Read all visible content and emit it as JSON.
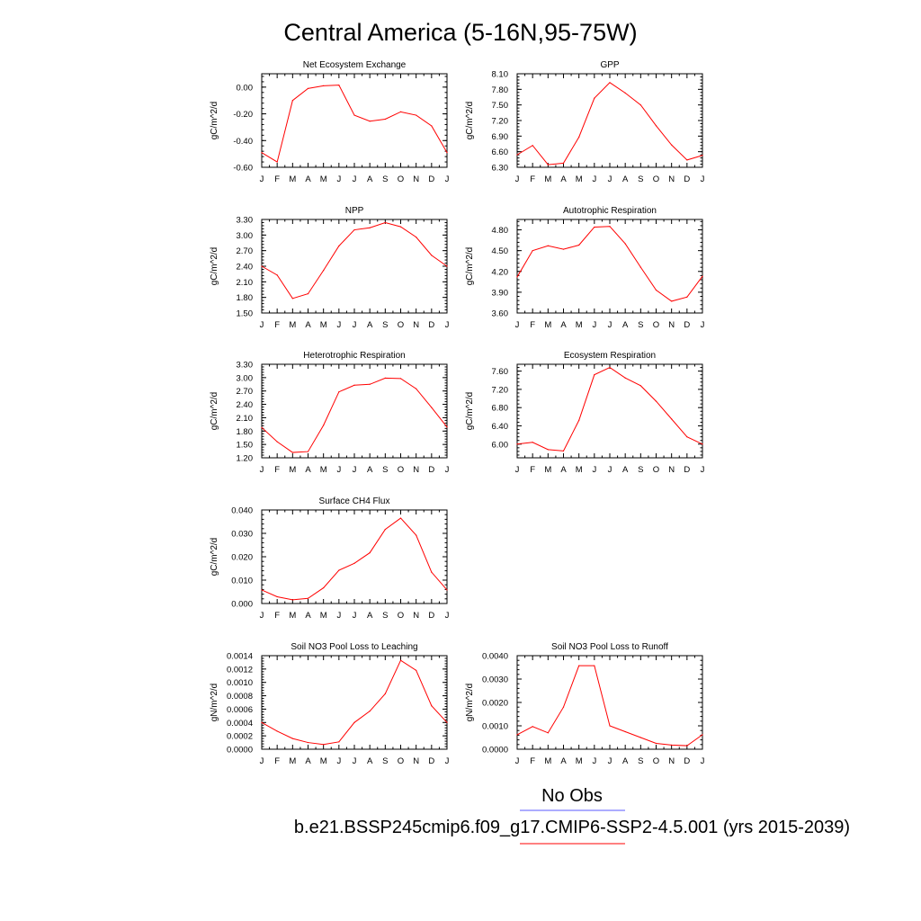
{
  "figure": {
    "title": "Central America (5-16N,95-75W)",
    "legend": [
      {
        "label": "No Obs",
        "color": "#5a5aff"
      },
      {
        "label": "b.e21.BSSP245cmip6.f09_g17.CMIP6-SSP2-4.5.001 (yrs 2015-2039)",
        "color": "#ff0000"
      }
    ]
  },
  "chart_data": [
    {
      "type": "line",
      "title": "Net Ecosystem Exchange",
      "ylabel": "gC/m^2/d",
      "categories": [
        "J",
        "F",
        "M",
        "A",
        "M",
        "J",
        "J",
        "A",
        "S",
        "O",
        "N",
        "D",
        "J"
      ],
      "ylim": [
        -0.6,
        0.1
      ],
      "yticks": [
        -0.6,
        -0.4,
        -0.2,
        0.0
      ],
      "ytick_labels": [
        "-0.60",
        "-0.40",
        "-0.20",
        "0.00"
      ],
      "series": [
        {
          "color": "#ff0000",
          "values": [
            -0.49,
            -0.56,
            -0.1,
            -0.01,
            0.01,
            0.015,
            -0.21,
            -0.255,
            -0.24,
            -0.185,
            -0.21,
            -0.29,
            -0.49
          ]
        }
      ]
    },
    {
      "type": "line",
      "title": "GPP",
      "ylabel": "gC/m^2/d",
      "categories": [
        "J",
        "F",
        "M",
        "A",
        "M",
        "J",
        "J",
        "A",
        "S",
        "O",
        "N",
        "D",
        "J"
      ],
      "ylim": [
        6.3,
        8.1
      ],
      "yticks": [
        6.3,
        6.6,
        6.9,
        7.2,
        7.5,
        7.8,
        8.1
      ],
      "ytick_labels": [
        "6.30",
        "6.60",
        "6.90",
        "7.20",
        "7.50",
        "7.80",
        "8.10"
      ],
      "series": [
        {
          "color": "#ff0000",
          "values": [
            6.54,
            6.72,
            6.35,
            6.38,
            6.88,
            7.63,
            7.93,
            7.73,
            7.5,
            7.1,
            6.73,
            6.44,
            6.53
          ]
        }
      ]
    },
    {
      "type": "line",
      "title": "NPP",
      "ylabel": "gC/m^2/d",
      "categories": [
        "J",
        "F",
        "M",
        "A",
        "M",
        "J",
        "J",
        "A",
        "S",
        "O",
        "N",
        "D",
        "J"
      ],
      "ylim": [
        1.5,
        3.3
      ],
      "yticks": [
        1.5,
        1.8,
        2.1,
        2.4,
        2.7,
        3.0,
        3.3
      ],
      "ytick_labels": [
        "1.50",
        "1.80",
        "2.10",
        "2.40",
        "2.70",
        "3.00",
        "3.30"
      ],
      "series": [
        {
          "color": "#ff0000",
          "values": [
            2.4,
            2.23,
            1.78,
            1.87,
            2.32,
            2.79,
            3.1,
            3.14,
            3.24,
            3.16,
            2.96,
            2.61,
            2.4
          ]
        }
      ]
    },
    {
      "type": "line",
      "title": "Autotrophic Respiration",
      "ylabel": "gC/m^2/d",
      "categories": [
        "J",
        "F",
        "M",
        "A",
        "M",
        "J",
        "J",
        "A",
        "S",
        "O",
        "N",
        "D",
        "J"
      ],
      "ylim": [
        3.6,
        4.95
      ],
      "yticks": [
        3.6,
        3.9,
        4.2,
        4.5,
        4.8
      ],
      "ytick_labels": [
        "3.60",
        "3.90",
        "4.20",
        "4.50",
        "4.80"
      ],
      "series": [
        {
          "color": "#ff0000",
          "values": [
            4.12,
            4.5,
            4.57,
            4.52,
            4.58,
            4.84,
            4.85,
            4.6,
            4.26,
            3.93,
            3.77,
            3.83,
            4.13
          ]
        }
      ]
    },
    {
      "type": "line",
      "title": "Heterotrophic Respiration",
      "ylabel": "gC/m^2/d",
      "categories": [
        "J",
        "F",
        "M",
        "A",
        "M",
        "J",
        "J",
        "A",
        "S",
        "O",
        "N",
        "D",
        "J"
      ],
      "ylim": [
        1.2,
        3.3
      ],
      "yticks": [
        1.2,
        1.5,
        1.8,
        2.1,
        2.4,
        2.7,
        3.0,
        3.3
      ],
      "ytick_labels": [
        "1.20",
        "1.50",
        "1.80",
        "2.10",
        "2.40",
        "2.70",
        "3.00",
        "3.30"
      ],
      "series": [
        {
          "color": "#ff0000",
          "values": [
            1.88,
            1.56,
            1.32,
            1.34,
            1.93,
            2.68,
            2.83,
            2.85,
            2.99,
            2.98,
            2.75,
            2.33,
            1.89
          ]
        }
      ]
    },
    {
      "type": "line",
      "title": "Ecosystem Respiration",
      "ylabel": "gC/m^2/d",
      "categories": [
        "J",
        "F",
        "M",
        "A",
        "M",
        "J",
        "J",
        "A",
        "S",
        "O",
        "N",
        "D",
        "J"
      ],
      "ylim": [
        5.7,
        7.75
      ],
      "yticks": [
        6.0,
        6.4,
        6.8,
        7.2,
        7.6
      ],
      "ytick_labels": [
        "6.00",
        "6.40",
        "6.80",
        "7.20",
        "7.60"
      ],
      "series": [
        {
          "color": "#ff0000",
          "values": [
            6.0,
            6.04,
            5.88,
            5.85,
            6.52,
            7.52,
            7.68,
            7.45,
            7.28,
            6.94,
            6.55,
            6.16,
            6.0
          ]
        }
      ]
    },
    {
      "type": "line",
      "title": "Surface CH4 Flux",
      "ylabel": "gC/m^2/d",
      "categories": [
        "J",
        "F",
        "M",
        "A",
        "M",
        "J",
        "J",
        "A",
        "S",
        "O",
        "N",
        "D",
        "J"
      ],
      "ylim": [
        0.0,
        0.04
      ],
      "yticks": [
        0.0,
        0.01,
        0.02,
        0.03,
        0.04
      ],
      "ytick_labels": [
        "0.000",
        "0.010",
        "0.020",
        "0.030",
        "0.040"
      ],
      "series": [
        {
          "color": "#ff0000",
          "values": [
            0.0058,
            0.0029,
            0.0016,
            0.0022,
            0.0067,
            0.0142,
            0.0172,
            0.0217,
            0.0317,
            0.0365,
            0.0292,
            0.0134,
            0.0058
          ]
        }
      ]
    },
    {
      "type": "line",
      "title": "Soil NO3 Pool Loss to Leaching",
      "ylabel": "gN/m^2/d",
      "categories": [
        "J",
        "F",
        "M",
        "A",
        "M",
        "J",
        "J",
        "A",
        "S",
        "O",
        "N",
        "D",
        "J"
      ],
      "ylim": [
        0.0,
        0.0014
      ],
      "yticks": [
        0.0,
        0.0002,
        0.0004,
        0.0006,
        0.0008,
        0.001,
        0.0012,
        0.0014
      ],
      "ytick_labels": [
        "0.0000",
        "0.0002",
        "0.0004",
        "0.0006",
        "0.0008",
        "0.0010",
        "0.0012",
        "0.0014"
      ],
      "series": [
        {
          "color": "#ff0000",
          "values": [
            0.0004,
            0.00027,
            0.00016,
            0.0001,
            7e-05,
            0.00011,
            0.0004,
            0.00057,
            0.00083,
            0.00133,
            0.00118,
            0.00065,
            0.0004
          ]
        }
      ]
    },
    {
      "type": "line",
      "title": "Soil NO3 Pool Loss to Runoff",
      "ylabel": "gN/m^2/d",
      "categories": [
        "J",
        "F",
        "M",
        "A",
        "M",
        "J",
        "J",
        "A",
        "S",
        "O",
        "N",
        "D",
        "J"
      ],
      "ylim": [
        0.0,
        0.004
      ],
      "yticks": [
        0.0,
        0.001,
        0.002,
        0.003,
        0.004
      ],
      "ytick_labels": [
        "0.0000",
        "0.0010",
        "0.0020",
        "0.0030",
        "0.0040"
      ],
      "series": [
        {
          "color": "#ff0000",
          "values": [
            0.00062,
            0.00097,
            0.0007,
            0.0018,
            0.00357,
            0.00357,
            0.001,
            0.00075,
            0.0005,
            0.00025,
            0.00018,
            0.00015,
            0.00062
          ]
        }
      ]
    }
  ]
}
